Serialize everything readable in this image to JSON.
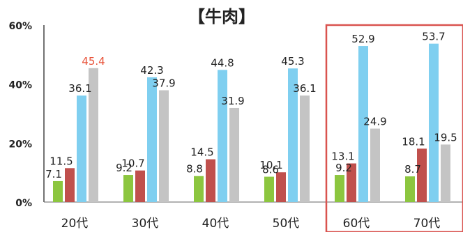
{
  "chart_data": {
    "type": "bar",
    "title": "【牛肉】",
    "categories": [
      "20代",
      "30代",
      "40代",
      "50代",
      "60代",
      "70代"
    ],
    "series": [
      {
        "color": "#8cc63f",
        "values": [
          7.1,
          9.2,
          8.8,
          8.6,
          9.2,
          8.7
        ]
      },
      {
        "color": "#c0504d",
        "values": [
          11.5,
          10.7,
          14.5,
          10.1,
          13.1,
          18.1
        ]
      },
      {
        "color": "#7fcff0",
        "values": [
          36.1,
          42.3,
          44.8,
          45.3,
          52.9,
          53.7
        ]
      },
      {
        "color": "#c4c4c4",
        "values": [
          45.4,
          37.9,
          31.9,
          36.1,
          24.9,
          19.5
        ]
      }
    ],
    "y_ticks": [
      "0%",
      "20%",
      "40%",
      "60%"
    ],
    "ylim": [
      0,
      60
    ],
    "grid": false,
    "highlight": {
      "categories": [
        "60代",
        "70代"
      ],
      "color": "#d9534f"
    },
    "emphasized_label": {
      "series_index": 3,
      "category_index": 0,
      "color": "#e8533a"
    }
  }
}
